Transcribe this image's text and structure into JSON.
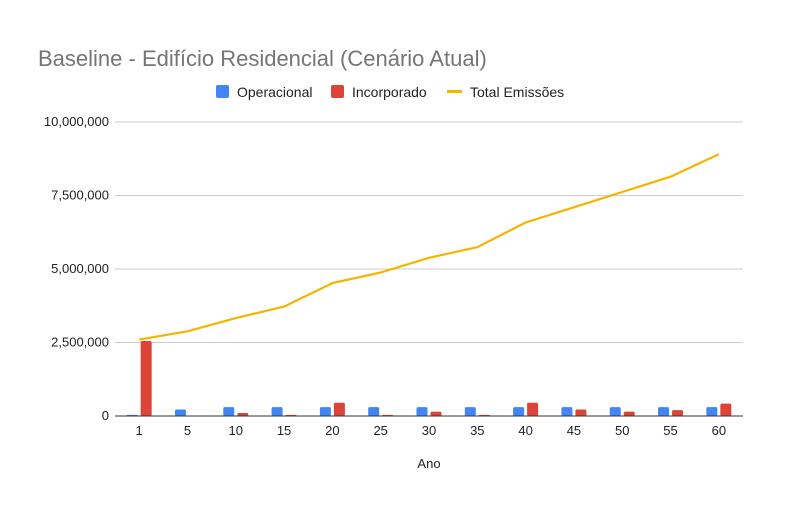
{
  "chart_data": {
    "type": "bar",
    "title": "Baseline - Edifício Residencial (Cenário Atual)",
    "xlabel": "Ano",
    "ylabel": "",
    "categories": [
      "1",
      "5",
      "10",
      "15",
      "20",
      "25",
      "30",
      "35",
      "40",
      "45",
      "50",
      "55",
      "60"
    ],
    "y_tick_labels": [
      "0",
      "2,500,000",
      "5,000,000",
      "7,500,000",
      "10,000,000"
    ],
    "ylim": [
      0,
      10000000
    ],
    "grid": true,
    "legend_position": "top",
    "series": [
      {
        "name": "Operacional",
        "type": "bar",
        "color": "#4285F4",
        "values": [
          40000,
          220000,
          300000,
          300000,
          300000,
          300000,
          300000,
          300000,
          300000,
          300000,
          300000,
          300000,
          300000
        ]
      },
      {
        "name": "Incorporado",
        "type": "bar",
        "color": "#DB4437",
        "values": [
          2550000,
          0,
          100000,
          40000,
          450000,
          40000,
          150000,
          40000,
          450000,
          220000,
          150000,
          200000,
          420000
        ]
      },
      {
        "name": "Total Emissões",
        "type": "line",
        "color": "#F4B400",
        "values": [
          2600000,
          2880000,
          3330000,
          3720000,
          4520000,
          4880000,
          5380000,
          5740000,
          6580000,
          7100000,
          7620000,
          8140000,
          8900000
        ]
      }
    ]
  }
}
